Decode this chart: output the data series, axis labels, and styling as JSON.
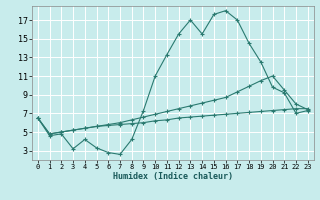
{
  "xlabel": "Humidex (Indice chaleur)",
  "bg_color": "#c8ecec",
  "grid_color": "#ffffff",
  "line_color": "#2a7a70",
  "xlim": [
    -0.5,
    23.5
  ],
  "ylim": [
    2.0,
    18.5
  ],
  "xticks": [
    0,
    1,
    2,
    3,
    4,
    5,
    6,
    7,
    8,
    9,
    10,
    11,
    12,
    13,
    14,
    15,
    16,
    17,
    18,
    19,
    20,
    21,
    22,
    23
  ],
  "yticks": [
    3,
    5,
    7,
    9,
    11,
    13,
    15,
    17
  ],
  "line1_x": [
    0,
    1,
    2,
    3,
    4,
    5,
    6,
    7,
    8,
    9,
    10,
    11,
    12,
    13,
    14,
    15,
    16,
    17,
    18,
    19,
    20,
    21,
    22,
    23
  ],
  "line1_y": [
    6.5,
    4.6,
    4.8,
    3.2,
    4.2,
    3.3,
    2.8,
    2.6,
    4.2,
    7.3,
    11.0,
    13.3,
    15.5,
    17.0,
    15.5,
    17.6,
    18.0,
    17.0,
    14.5,
    12.5,
    9.8,
    9.2,
    7.0,
    7.3
  ],
  "line2_x": [
    0,
    1,
    2,
    3,
    4,
    5,
    6,
    7,
    8,
    9,
    10,
    11,
    12,
    13,
    14,
    15,
    16,
    17,
    18,
    19,
    20,
    21,
    22,
    23
  ],
  "line2_y": [
    6.5,
    4.8,
    5.0,
    5.2,
    5.4,
    5.6,
    5.8,
    6.0,
    6.3,
    6.6,
    6.9,
    7.2,
    7.5,
    7.8,
    8.1,
    8.4,
    8.7,
    9.3,
    9.9,
    10.5,
    11.0,
    9.5,
    8.0,
    7.4
  ],
  "line3_x": [
    0,
    1,
    2,
    3,
    4,
    5,
    6,
    7,
    8,
    9,
    10,
    11,
    12,
    13,
    14,
    15,
    16,
    17,
    18,
    19,
    20,
    21,
    22,
    23
  ],
  "line3_y": [
    6.5,
    4.8,
    5.0,
    5.2,
    5.4,
    5.6,
    5.7,
    5.8,
    5.9,
    6.0,
    6.2,
    6.3,
    6.5,
    6.6,
    6.7,
    6.8,
    6.9,
    7.0,
    7.1,
    7.2,
    7.3,
    7.4,
    7.5,
    7.5
  ]
}
